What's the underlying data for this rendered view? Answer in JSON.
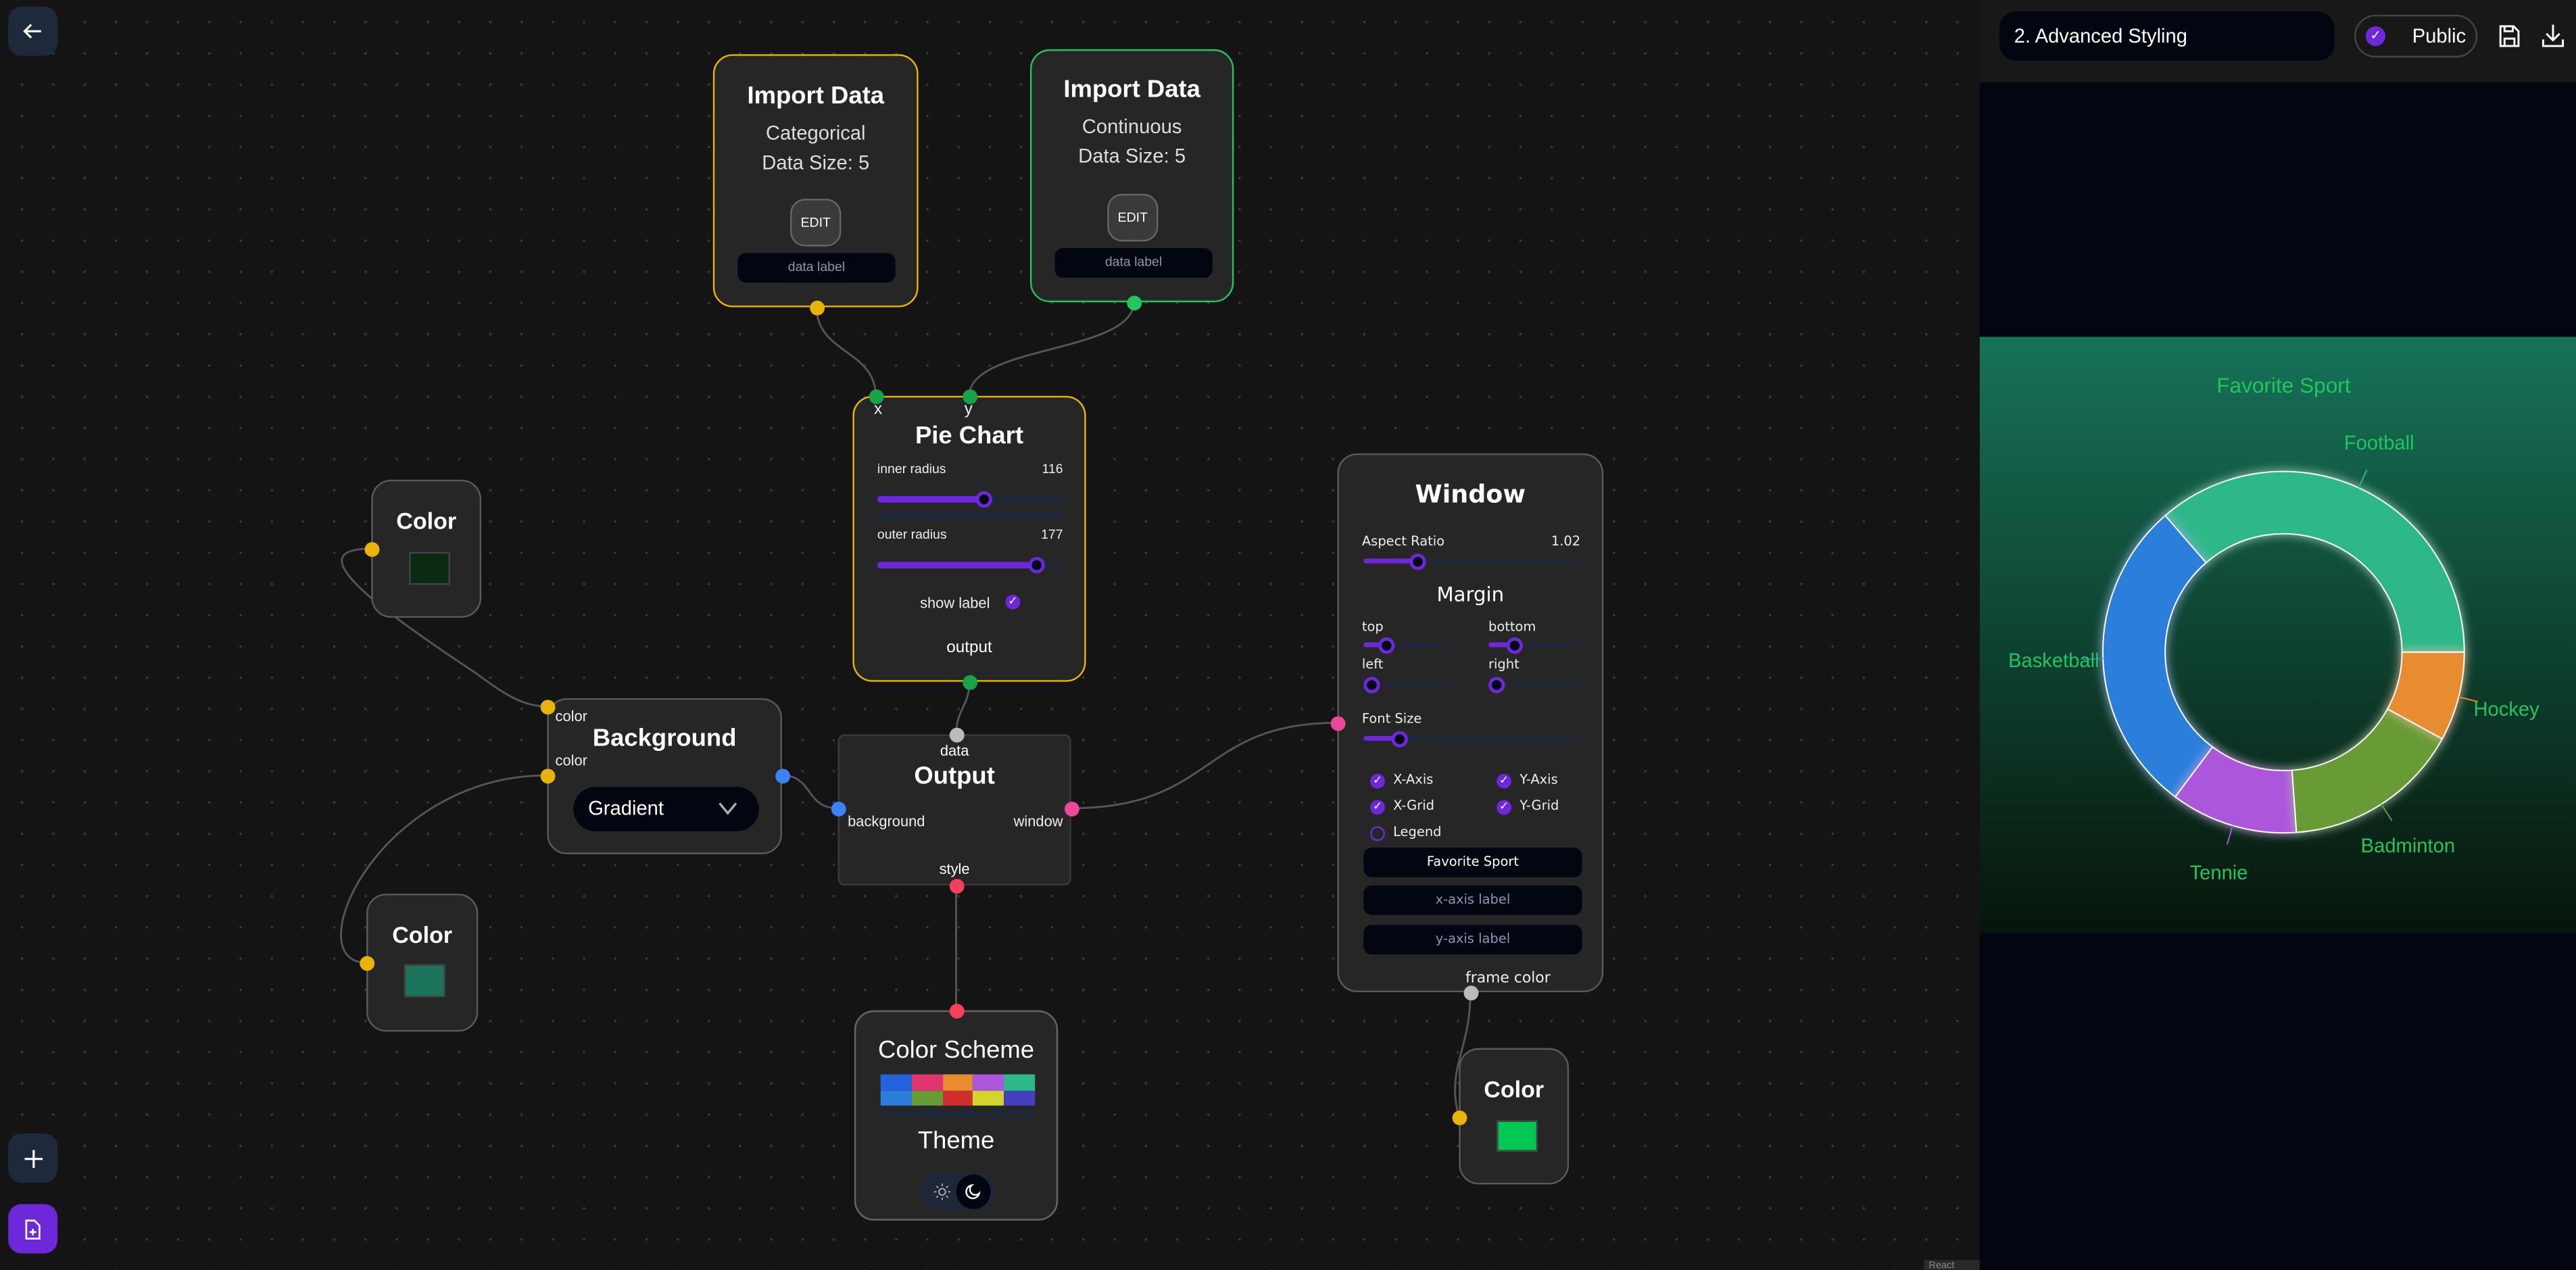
{
  "toolbar": {
    "back_icon": "arrow-left-icon",
    "add_icon": "plus-icon",
    "new_file_icon": "file-plus-icon"
  },
  "header": {
    "title_value": "2. Advanced Styling",
    "public_label": "Public",
    "public_checked": true,
    "save_icon": "floppy-disk-icon",
    "download_icon": "download-icon"
  },
  "attribution": "React Flow",
  "nodes": {
    "import_categorical": {
      "title": "Import Data",
      "type": "Categorical",
      "size": "Data Size: 5",
      "edit": "EDIT",
      "label_placeholder": "data label",
      "border": "#eab308"
    },
    "import_continuous": {
      "title": "Import Data",
      "type": "Continuous",
      "size": "Data Size: 5",
      "edit": "EDIT",
      "label_placeholder": "data label",
      "border": "#22c55e"
    },
    "pie": {
      "title": "Pie Chart",
      "x_label": "x",
      "y_label": "y",
      "inner_label": "inner radius",
      "inner_value": "116",
      "inner_level": 0.57,
      "outer_label": "outer radius",
      "outer_value": "177",
      "outer_level": 0.85,
      "show_label": "show label",
      "show_label_checked": true,
      "output_label": "output"
    },
    "color1": {
      "title": "Color",
      "swatch": "#0b2a12"
    },
    "color2": {
      "title": "Color",
      "swatch": "#1a735a"
    },
    "color3": {
      "title": "Color",
      "swatch": "#00c853"
    },
    "background": {
      "title": "Background",
      "in1": "color",
      "in2": "color",
      "select_value": "Gradient"
    },
    "output": {
      "title": "Output",
      "data": "data",
      "background": "background",
      "window": "window",
      "style": "style"
    },
    "scheme": {
      "title": "Color Scheme",
      "colors": [
        "#2563db",
        "#e0356f",
        "#e88c30",
        "#ab57db",
        "#2eb88a",
        "#2a7fdb",
        "#679b35",
        "#d12e2e",
        "#d4d42e",
        "#4440bf"
      ],
      "theme_label": "Theme",
      "theme_mode": "dark",
      "sun_icon": "sun-icon",
      "moon_icon": "moon-icon"
    },
    "window": {
      "title": "Window",
      "aspect_label": "Aspect Ratio",
      "aspect_value": "1.02",
      "aspect_level": 0.25,
      "margin_title": "Margin",
      "top": "top",
      "top_level": 0.27,
      "bottom": "bottom",
      "bottom_level": 0.28,
      "left": "left",
      "left_level": 0,
      "right": "right",
      "right_level": 0,
      "font_label": "Font Size",
      "font_level": 0.17,
      "checks": [
        {
          "label": "X-Axis",
          "checked": true
        },
        {
          "label": "Y-Axis",
          "checked": true
        },
        {
          "label": "X-Grid",
          "checked": true
        },
        {
          "label": "Y-Grid",
          "checked": true
        },
        {
          "label": "Legend",
          "checked": false
        }
      ],
      "title_value": "Favorite Sport",
      "xaxis_placeholder": "x-axis label",
      "yaxis_placeholder": "y-axis label",
      "frame_color": "frame color"
    }
  },
  "chart_data": {
    "type": "pie",
    "title": "Favorite Sport",
    "donut": true,
    "inner_radius": 116,
    "outer_radius": 177,
    "categories": [
      "Football",
      "Basketball",
      "Tennie",
      "Badminton",
      "Hockey"
    ],
    "values": [
      32,
      25,
      10,
      14,
      7
    ],
    "colors": [
      "#2eb88a",
      "#2a7fdb",
      "#ab57db",
      "#679b35",
      "#e88c30"
    ],
    "label_color": "#22c55e",
    "legend": false,
    "background": [
      "#167259",
      "#07150a"
    ]
  }
}
